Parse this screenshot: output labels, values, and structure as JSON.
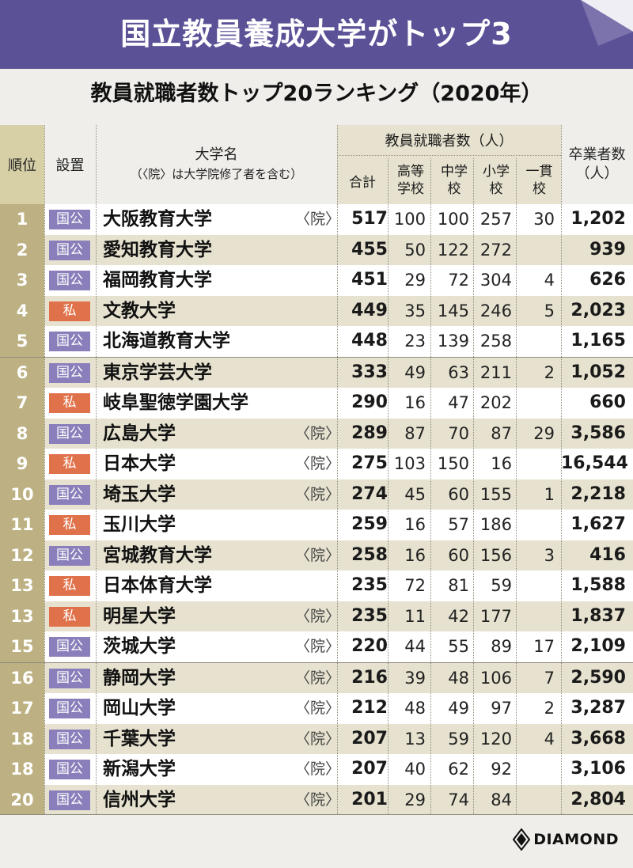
{
  "banner": {
    "title": "国立教員養成大学がトップ3"
  },
  "subtitle": "教員就職者数トップ20ランキング（2020年）",
  "headers": {
    "rank": "順位",
    "setti": "設置",
    "university": "大学名",
    "university_note": "（〈院〉は大学院修了者を含む）",
    "employment_group": "教員就職者数（人）",
    "total": "合計",
    "high_school": [
      "高等",
      "学校"
    ],
    "junior_high": [
      "中学",
      "校"
    ],
    "elementary": [
      "小学",
      "校"
    ],
    "integrated": [
      "一貫",
      "校"
    ],
    "graduates": [
      "卒業者数",
      "（人）"
    ]
  },
  "brand": "DIAMOND",
  "colors": {
    "banner": "#5b5196",
    "public_badge": "#8a7fba",
    "private_badge": "#e0724b",
    "rank_cell": "#bdb183",
    "shaded_row": "#e6e2cf"
  },
  "chart_data": {
    "type": "table",
    "title": "教員就職者数トップ20ランキング（2020年）",
    "columns": [
      "順位",
      "設置",
      "大学名",
      "院",
      "合計",
      "高等学校",
      "中学校",
      "小学校",
      "一貫校",
      "卒業者数（人）"
    ],
    "rows": [
      {
        "rank": "1",
        "setti": "国公",
        "name": "大阪教育大学",
        "grad": "〈院〉",
        "total": "517",
        "hs": "100",
        "jh": "100",
        "el": "257",
        "ik": "30",
        "graduates": "1,202"
      },
      {
        "rank": "2",
        "setti": "国公",
        "name": "愛知教育大学",
        "grad": "",
        "total": "455",
        "hs": "50",
        "jh": "122",
        "el": "272",
        "ik": "",
        "graduates": "939"
      },
      {
        "rank": "3",
        "setti": "国公",
        "name": "福岡教育大学",
        "grad": "",
        "total": "451",
        "hs": "29",
        "jh": "72",
        "el": "304",
        "ik": "4",
        "graduates": "626"
      },
      {
        "rank": "4",
        "setti": "私",
        "name": "文教大学",
        "grad": "",
        "total": "449",
        "hs": "35",
        "jh": "145",
        "el": "246",
        "ik": "5",
        "graduates": "2,023"
      },
      {
        "rank": "5",
        "setti": "国公",
        "name": "北海道教育大学",
        "grad": "",
        "total": "448",
        "hs": "23",
        "jh": "139",
        "el": "258",
        "ik": "",
        "graduates": "1,165"
      },
      {
        "rank": "6",
        "setti": "国公",
        "name": "東京学芸大学",
        "grad": "",
        "total": "333",
        "hs": "49",
        "jh": "63",
        "el": "211",
        "ik": "2",
        "graduates": "1,052"
      },
      {
        "rank": "7",
        "setti": "私",
        "name": "岐阜聖徳学園大学",
        "grad": "",
        "total": "290",
        "hs": "16",
        "jh": "47",
        "el": "202",
        "ik": "",
        "graduates": "660"
      },
      {
        "rank": "8",
        "setti": "国公",
        "name": "広島大学",
        "grad": "〈院〉",
        "total": "289",
        "hs": "87",
        "jh": "70",
        "el": "87",
        "ik": "29",
        "graduates": "3,586"
      },
      {
        "rank": "9",
        "setti": "私",
        "name": "日本大学",
        "grad": "〈院〉",
        "total": "275",
        "hs": "103",
        "jh": "150",
        "el": "16",
        "ik": "",
        "graduates": "16,544"
      },
      {
        "rank": "10",
        "setti": "国公",
        "name": "埼玉大学",
        "grad": "〈院〉",
        "total": "274",
        "hs": "45",
        "jh": "60",
        "el": "155",
        "ik": "1",
        "graduates": "2,218"
      },
      {
        "rank": "11",
        "setti": "私",
        "name": "玉川大学",
        "grad": "",
        "total": "259",
        "hs": "16",
        "jh": "57",
        "el": "186",
        "ik": "",
        "graduates": "1,627"
      },
      {
        "rank": "12",
        "setti": "国公",
        "name": "宮城教育大学",
        "grad": "〈院〉",
        "total": "258",
        "hs": "16",
        "jh": "60",
        "el": "156",
        "ik": "3",
        "graduates": "416"
      },
      {
        "rank": "13",
        "setti": "私",
        "name": "日本体育大学",
        "grad": "",
        "total": "235",
        "hs": "72",
        "jh": "81",
        "el": "59",
        "ik": "",
        "graduates": "1,588"
      },
      {
        "rank": "13",
        "setti": "私",
        "name": "明星大学",
        "grad": "〈院〉",
        "total": "235",
        "hs": "11",
        "jh": "42",
        "el": "177",
        "ik": "",
        "graduates": "1,837"
      },
      {
        "rank": "15",
        "setti": "国公",
        "name": "茨城大学",
        "grad": "〈院〉",
        "total": "220",
        "hs": "44",
        "jh": "55",
        "el": "89",
        "ik": "17",
        "graduates": "2,109"
      },
      {
        "rank": "16",
        "setti": "国公",
        "name": "静岡大学",
        "grad": "〈院〉",
        "total": "216",
        "hs": "39",
        "jh": "48",
        "el": "106",
        "ik": "7",
        "graduates": "2,590"
      },
      {
        "rank": "17",
        "setti": "国公",
        "name": "岡山大学",
        "grad": "〈院〉",
        "total": "212",
        "hs": "48",
        "jh": "49",
        "el": "97",
        "ik": "2",
        "graduates": "3,287"
      },
      {
        "rank": "18",
        "setti": "国公",
        "name": "千葉大学",
        "grad": "〈院〉",
        "total": "207",
        "hs": "13",
        "jh": "59",
        "el": "120",
        "ik": "4",
        "graduates": "3,668"
      },
      {
        "rank": "18",
        "setti": "国公",
        "name": "新潟大学",
        "grad": "〈院〉",
        "total": "207",
        "hs": "40",
        "jh": "62",
        "el": "92",
        "ik": "",
        "graduates": "3,106"
      },
      {
        "rank": "20",
        "setti": "国公",
        "name": "信州大学",
        "grad": "〈院〉",
        "total": "201",
        "hs": "29",
        "jh": "74",
        "el": "84",
        "ik": "",
        "graduates": "2,804"
      }
    ]
  }
}
